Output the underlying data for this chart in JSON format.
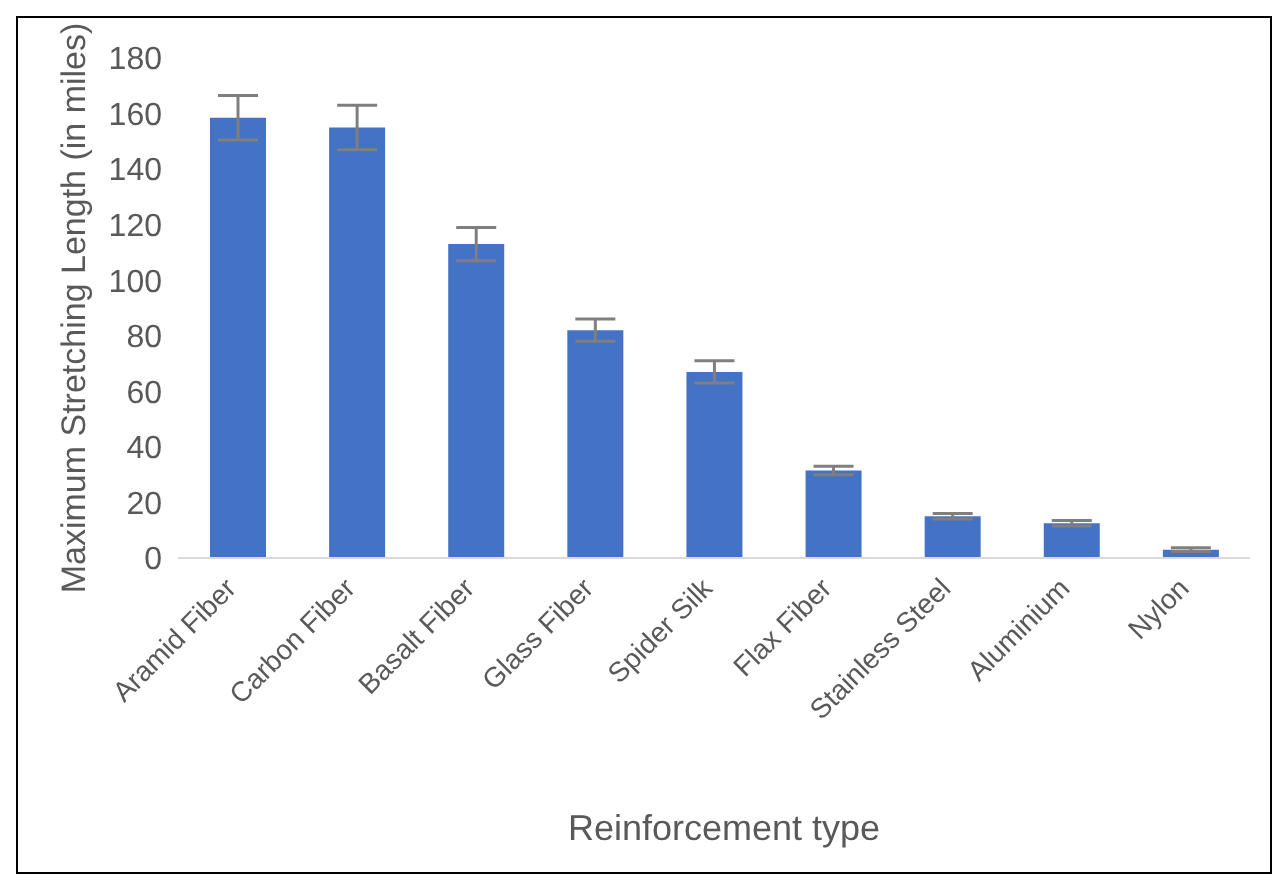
{
  "chart_data": {
    "type": "bar",
    "xlabel": "Reinforcement type",
    "ylabel": "Maximum Stretching Length (in miles)",
    "categories": [
      "Aramid Fiber",
      "Carbon Fiber",
      "Basalt Fiber",
      "Glass Fiber",
      "Spider Silk",
      "Flax Fiber",
      "Stainless Steel",
      "Aluminium",
      "Nylon"
    ],
    "values": [
      158.5,
      155,
      113,
      82,
      67,
      31.5,
      15,
      12.5,
      3
    ],
    "errors": [
      8,
      8,
      6,
      4,
      4,
      1.5,
      1,
      1,
      0.7
    ],
    "color": "#4472c4",
    "ylim": [
      0,
      180
    ],
    "yticks": [
      0,
      20,
      40,
      60,
      80,
      100,
      120,
      140,
      160,
      180
    ],
    "grid": false,
    "legend": false
  }
}
